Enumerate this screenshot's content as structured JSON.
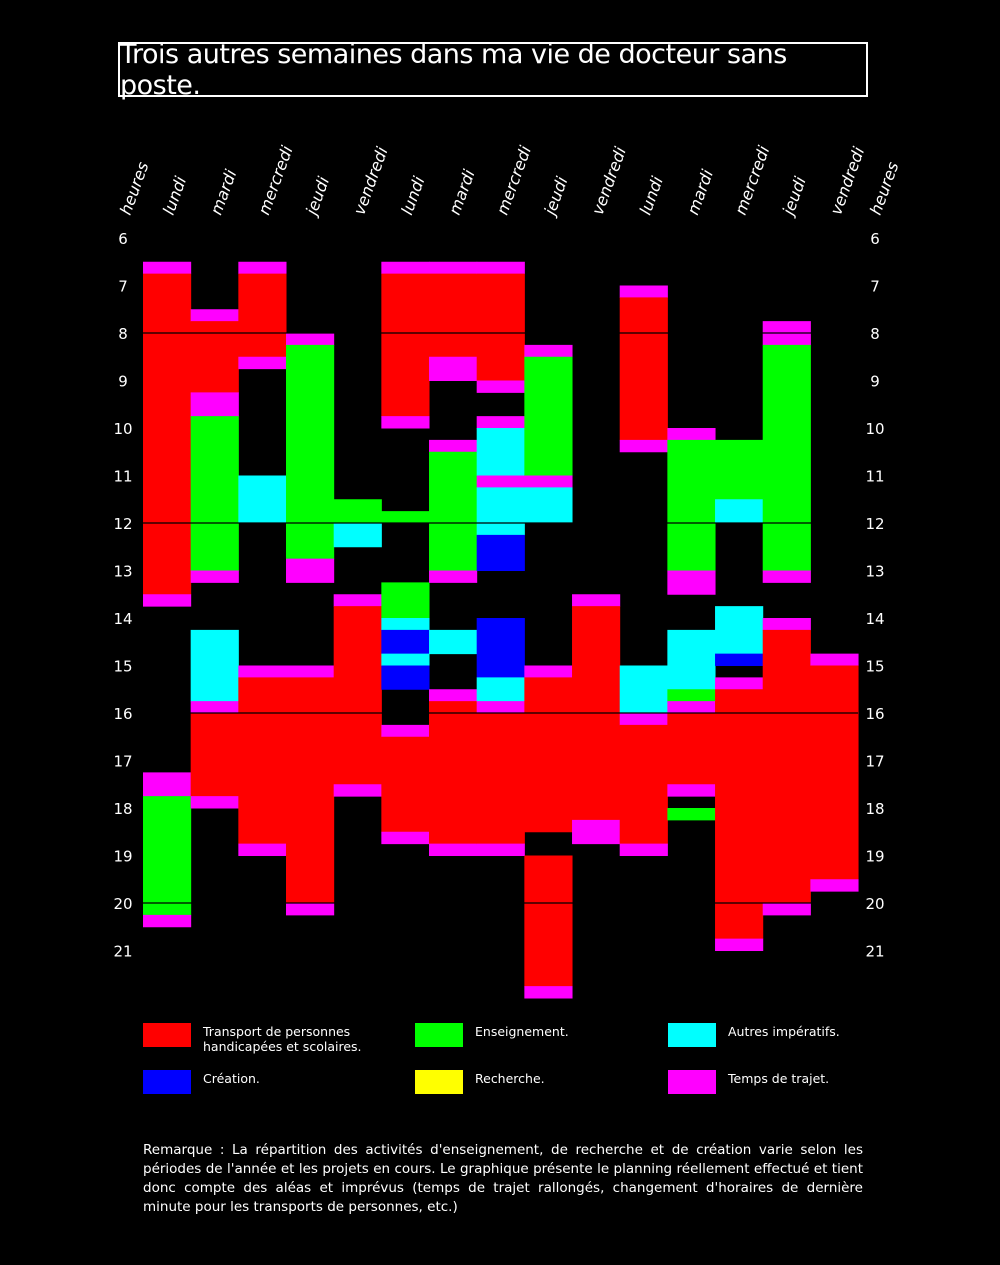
{
  "title": "Trois autres semaines dans ma vie de docteur sans poste.",
  "hours_label": "heures",
  "colors": {
    "transport": "#ff0000",
    "enseignement": "#00ff00",
    "autres": "#00ffff",
    "creation": "#0000ff",
    "recherche": "#ffff00",
    "trajet": "#ff00ff",
    "background": "#000000"
  },
  "legend": [
    {
      "key": "transport",
      "label": "Transport de personnes\nhandicapées et scolaires."
    },
    {
      "key": "enseignement",
      "label": "Enseignement."
    },
    {
      "key": "autres",
      "label": "Autres impératifs."
    },
    {
      "key": "creation",
      "label": "Création."
    },
    {
      "key": "recherche",
      "label": "Recherche."
    },
    {
      "key": "trajet",
      "label": "Temps de trajet."
    }
  ],
  "note": "Remarque : La répartition des activités d'enseignement, de recherche et de création varie selon les périodes de l'année et les projets en cours. Le graphique présente le planning réellement effectué et tient donc compte des aléas et imprévus (temps de trajet rallongés, changement d'horaires de dernière minute pour les transports de personnes, etc.)",
  "chart_data": {
    "type": "heatmap",
    "title": "Trois autres semaines dans ma vie de docteur sans poste.",
    "y_unit": "heures",
    "hour_ticks": [
      6,
      7,
      8,
      9,
      10,
      11,
      12,
      13,
      14,
      15,
      16,
      17,
      18,
      19,
      20,
      21
    ],
    "reference_lines": [
      8,
      12,
      16,
      20
    ],
    "days": [
      "lundi",
      "mardi",
      "mercredi",
      "jeudi",
      "vendredi",
      "lundi",
      "mardi",
      "mercredi",
      "jeudi",
      "vendredi",
      "lundi",
      "mardi",
      "mercredi",
      "jeudi",
      "vendredi"
    ],
    "blocks": [
      [
        [
          6.5,
          6.75,
          "trajet"
        ],
        [
          6.75,
          13.5,
          "transport"
        ],
        [
          13.5,
          13.75,
          "trajet"
        ],
        [
          17.25,
          17.75,
          "trajet"
        ],
        [
          17.75,
          20.25,
          "enseignement"
        ],
        [
          20.25,
          20.5,
          "trajet"
        ]
      ],
      [
        [
          7.5,
          7.75,
          "trajet"
        ],
        [
          7.75,
          9.25,
          "transport"
        ],
        [
          9.25,
          9.75,
          "trajet"
        ],
        [
          9.75,
          13,
          "enseignement"
        ],
        [
          13,
          13.25,
          "trajet"
        ],
        [
          14.25,
          15.75,
          "autres"
        ],
        [
          15.75,
          16,
          "trajet"
        ],
        [
          16,
          17.75,
          "transport"
        ],
        [
          17.75,
          18,
          "trajet"
        ]
      ],
      [
        [
          6.5,
          6.75,
          "trajet"
        ],
        [
          6.75,
          8.5,
          "transport"
        ],
        [
          8.5,
          8.75,
          "trajet"
        ],
        [
          11,
          12,
          "autres"
        ],
        [
          15,
          15.25,
          "trajet"
        ],
        [
          15.25,
          18.75,
          "transport"
        ],
        [
          18.75,
          19,
          "trajet"
        ]
      ],
      [
        [
          8,
          8.25,
          "trajet"
        ],
        [
          8.25,
          12.75,
          "enseignement"
        ],
        [
          12.75,
          13.25,
          "trajet"
        ],
        [
          15,
          15.25,
          "trajet"
        ],
        [
          15.25,
          20,
          "transport"
        ],
        [
          20,
          20.25,
          "trajet"
        ]
      ],
      [
        [
          11.5,
          12,
          "enseignement"
        ],
        [
          12,
          12.5,
          "autres"
        ],
        [
          13.5,
          13.75,
          "trajet"
        ],
        [
          13.75,
          17.5,
          "transport"
        ],
        [
          17.5,
          17.75,
          "trajet"
        ]
      ],
      [
        [
          6.5,
          6.75,
          "trajet"
        ],
        [
          6.75,
          9.75,
          "transport"
        ],
        [
          9.75,
          10,
          "trajet"
        ],
        [
          11.75,
          12,
          "enseignement"
        ],
        [
          13.25,
          14,
          "enseignement"
        ],
        [
          14,
          14.25,
          "autres"
        ],
        [
          14.25,
          14.75,
          "creation"
        ],
        [
          14.75,
          15,
          "autres"
        ],
        [
          15,
          15.5,
          "creation"
        ],
        [
          16.25,
          16.5,
          "trajet"
        ],
        [
          16.5,
          18.5,
          "transport"
        ],
        [
          18.5,
          18.75,
          "trajet"
        ]
      ],
      [
        [
          6.5,
          6.75,
          "trajet"
        ],
        [
          6.75,
          8.5,
          "transport"
        ],
        [
          8.5,
          9,
          "trajet"
        ],
        [
          10.25,
          10.5,
          "trajet"
        ],
        [
          10.5,
          13,
          "enseignement"
        ],
        [
          13,
          13.25,
          "trajet"
        ],
        [
          14.25,
          14.75,
          "autres"
        ],
        [
          15.5,
          15.75,
          "trajet"
        ],
        [
          15.75,
          18.75,
          "transport"
        ],
        [
          18.75,
          19,
          "trajet"
        ]
      ],
      [
        [
          6.5,
          6.75,
          "trajet"
        ],
        [
          6.75,
          9,
          "transport"
        ],
        [
          9,
          9.25,
          "trajet"
        ],
        [
          9.75,
          10,
          "trajet"
        ],
        [
          10,
          11,
          "autres"
        ],
        [
          11,
          11.25,
          "trajet"
        ],
        [
          11.25,
          12.25,
          "autres"
        ],
        [
          12.25,
          13,
          "creation"
        ],
        [
          14,
          15.25,
          "creation"
        ],
        [
          15.25,
          15.75,
          "autres"
        ],
        [
          15.75,
          16,
          "trajet"
        ],
        [
          16,
          18.75,
          "transport"
        ],
        [
          18.75,
          19,
          "trajet"
        ]
      ],
      [
        [
          8.25,
          8.5,
          "trajet"
        ],
        [
          8.5,
          11,
          "enseignement"
        ],
        [
          11,
          11.25,
          "trajet"
        ],
        [
          11.25,
          12,
          "autres"
        ],
        [
          15,
          15.25,
          "trajet"
        ],
        [
          15.25,
          18.5,
          "transport"
        ],
        [
          19,
          21.75,
          "transport"
        ],
        [
          21.75,
          22,
          "trajet"
        ]
      ],
      [
        [
          13.5,
          13.75,
          "trajet"
        ],
        [
          13.75,
          18.25,
          "transport"
        ],
        [
          18.25,
          18.75,
          "trajet"
        ]
      ],
      [
        [
          7,
          7.25,
          "trajet"
        ],
        [
          7.25,
          10.25,
          "transport"
        ],
        [
          10.25,
          10.5,
          "trajet"
        ],
        [
          15,
          16,
          "autres"
        ],
        [
          16,
          16.25,
          "trajet"
        ],
        [
          16.25,
          18.75,
          "transport"
        ],
        [
          18.75,
          19,
          "trajet"
        ]
      ],
      [
        [
          10,
          10.25,
          "trajet"
        ],
        [
          10.25,
          13,
          "enseignement"
        ],
        [
          13,
          13.5,
          "trajet"
        ],
        [
          14.25,
          15.5,
          "autres"
        ],
        [
          15.5,
          15.75,
          "enseignement"
        ],
        [
          15.75,
          16,
          "trajet"
        ],
        [
          16,
          17.5,
          "transport"
        ],
        [
          17.5,
          17.75,
          "trajet"
        ],
        [
          18,
          18.25,
          "enseignement"
        ]
      ],
      [
        [
          10.25,
          11.5,
          "enseignement"
        ],
        [
          11.5,
          12,
          "autres"
        ],
        [
          13.75,
          14.75,
          "autres"
        ],
        [
          14.75,
          15,
          "creation"
        ],
        [
          15.25,
          15.5,
          "trajet"
        ],
        [
          15.5,
          20.75,
          "transport"
        ],
        [
          20.75,
          21,
          "trajet"
        ]
      ],
      [
        [
          7.75,
          8.25,
          "trajet"
        ],
        [
          8.25,
          13,
          "enseignement"
        ],
        [
          13,
          13.25,
          "trajet"
        ],
        [
          14,
          14.25,
          "trajet"
        ],
        [
          14.25,
          20,
          "transport"
        ],
        [
          20,
          20.25,
          "trajet"
        ]
      ],
      [
        [
          14.75,
          15,
          "trajet"
        ],
        [
          15,
          19.5,
          "transport"
        ],
        [
          19.5,
          19.75,
          "trajet"
        ]
      ]
    ]
  }
}
